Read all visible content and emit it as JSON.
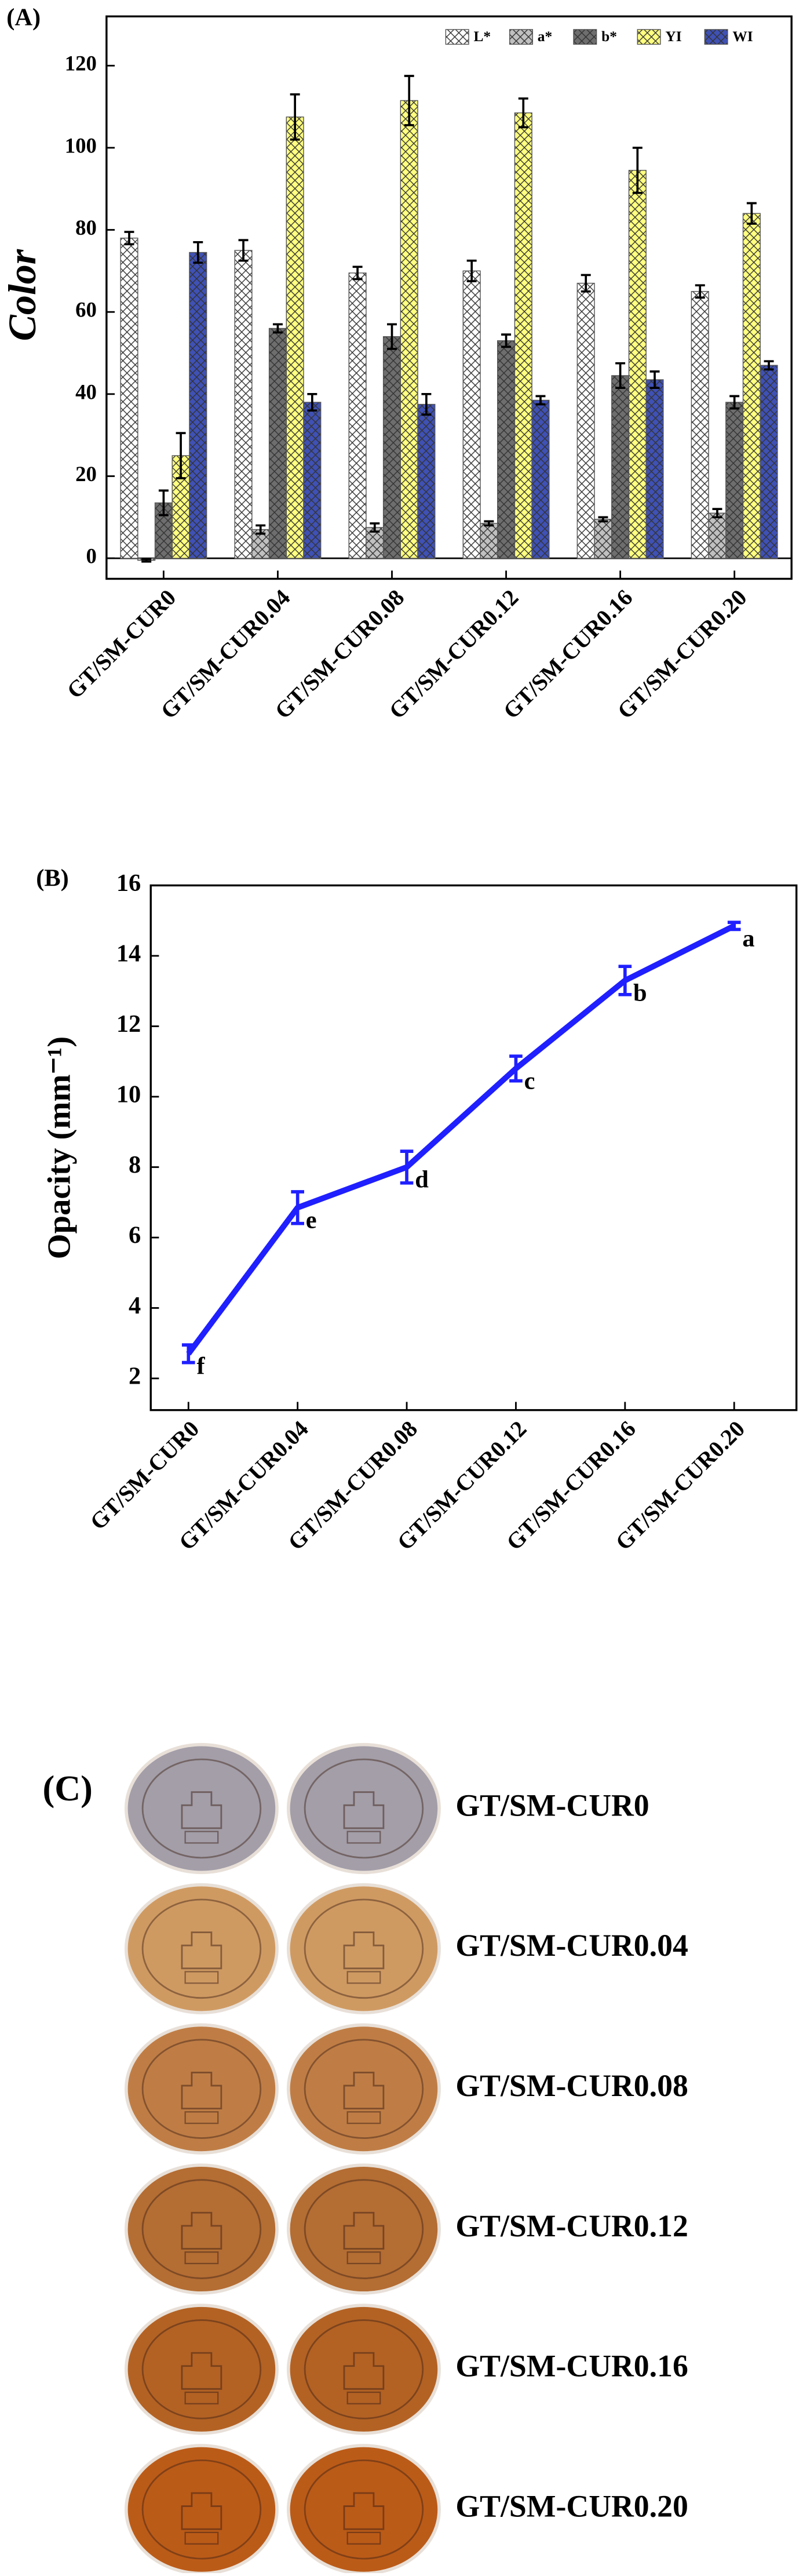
{
  "chart_data": [
    {
      "type": "bar",
      "panel_label": "(A)",
      "y_label": "Color",
      "categories": [
        "GT/SM-CUR0",
        "GT/SM-CUR0.04",
        "GT/SM-CUR0.08",
        "GT/SM-CUR0.12",
        "GT/SM-CUR0.16",
        "GT/SM-CUR0.20"
      ],
      "ylim": [
        -5,
        132
      ],
      "yticks": [
        0,
        20,
        40,
        60,
        80,
        100,
        120
      ],
      "grid": false,
      "legend": "upper right",
      "series": [
        {
          "name": "L*",
          "color": "#ffffff",
          "values": [
            78,
            75,
            69.5,
            70,
            67,
            65
          ],
          "errors": [
            1.5,
            2.5,
            1.5,
            2.5,
            2,
            1.5
          ]
        },
        {
          "name": "a*",
          "color": "#c0c0c0",
          "values": [
            -0.5,
            7,
            7.5,
            8.5,
            9.5,
            11
          ],
          "errors": [
            0.3,
            1,
            1,
            0.5,
            0.5,
            1
          ]
        },
        {
          "name": "b*",
          "color": "#6e6e6e",
          "values": [
            13.5,
            56,
            54,
            53,
            44.5,
            38
          ],
          "errors": [
            3,
            1,
            3,
            1.5,
            3,
            1.5
          ]
        },
        {
          "name": "YI",
          "color": "#ffff80",
          "values": [
            25,
            107.5,
            111.5,
            108.5,
            94.5,
            84
          ],
          "errors": [
            5.5,
            5.5,
            6,
            3.5,
            5.5,
            2.5
          ]
        },
        {
          "name": "WI",
          "color": "#3f51b5",
          "values": [
            74.5,
            38,
            37.5,
            38.5,
            43.5,
            47
          ],
          "errors": [
            2.5,
            2,
            2.5,
            1,
            2,
            1
          ]
        }
      ]
    },
    {
      "type": "line",
      "panel_label": "(B)",
      "y_label": "Opacity (mm⁻¹)",
      "categories": [
        "GT/SM-CUR0",
        "GT/SM-CUR0.04",
        "GT/SM-CUR0.08",
        "GT/SM-CUR0.12",
        "GT/SM-CUR0.16",
        "GT/SM-CUR0.20"
      ],
      "values": [
        2.7,
        6.85,
        8.0,
        10.8,
        13.3,
        14.85
      ],
      "errors": [
        0.25,
        0.45,
        0.45,
        0.35,
        0.4,
        0.1
      ],
      "annotations": [
        "f",
        "e",
        "d",
        "c",
        "b",
        "a"
      ],
      "color": "#1f1fff",
      "ylim": [
        1.1,
        16
      ],
      "yticks": [
        2,
        4,
        6,
        8,
        10,
        12,
        14,
        16
      ],
      "grid": false
    }
  ],
  "photo_panel": {
    "label": "(C)",
    "samples": [
      "GT/SM-CUR0",
      "GT/SM-CUR0.04",
      "GT/SM-CUR0.08",
      "GT/SM-CUR0.12",
      "GT/SM-CUR0.16",
      "GT/SM-CUR0.20"
    ]
  }
}
